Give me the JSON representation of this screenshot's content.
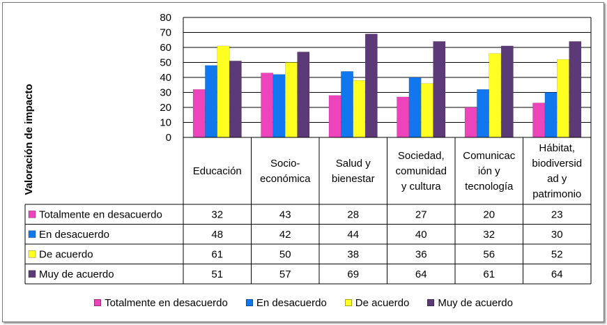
{
  "chart_data": {
    "type": "bar",
    "ylabel": "Valoración de impacto",
    "ylim": [
      0,
      80
    ],
    "yticks": [
      0,
      10,
      20,
      30,
      40,
      50,
      60,
      70,
      80
    ],
    "grid": true,
    "legend_placement": "bottom",
    "categories": [
      [
        "Educación"
      ],
      [
        "Socio-",
        "económica"
      ],
      [
        "Salud y",
        "bienestar"
      ],
      [
        "Sociedad,",
        "comunidad",
        "y cultura"
      ],
      [
        "Comunicac",
        "ión y",
        "tecnología"
      ],
      [
        "Hábitat,",
        "biodiversid",
        "ad y",
        "patrimonio"
      ]
    ],
    "series": [
      {
        "name": "Totalmente en desacuerdo",
        "color": "#ee44bb",
        "values": [
          32,
          43,
          28,
          27,
          20,
          23
        ]
      },
      {
        "name": "En desacuerdo",
        "color": "#1177ee",
        "values": [
          48,
          42,
          44,
          40,
          32,
          30
        ]
      },
      {
        "name": "De acuerdo",
        "color": "#ffff22",
        "values": [
          61,
          50,
          38,
          36,
          56,
          52
        ]
      },
      {
        "name": "Muy de acuerdo",
        "color": "#5c3a78",
        "values": [
          51,
          57,
          69,
          64,
          61,
          64
        ]
      }
    ]
  }
}
